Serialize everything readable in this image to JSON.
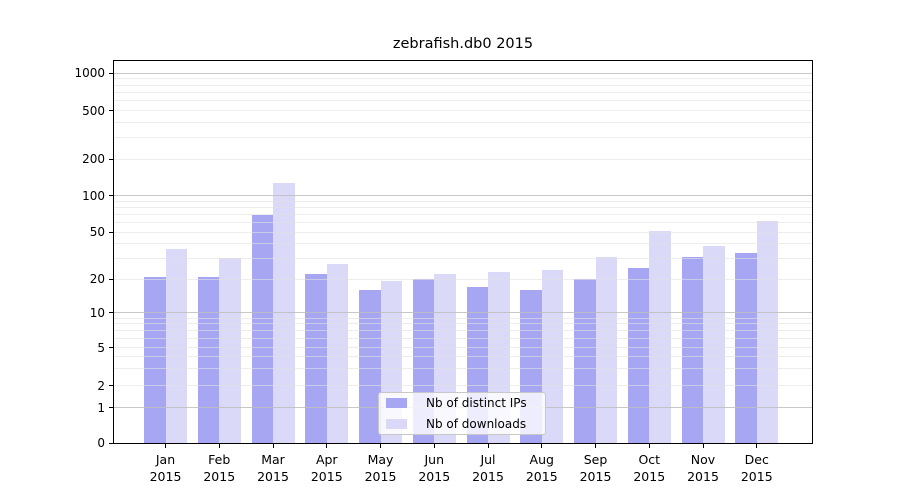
{
  "chart_data": {
    "type": "bar",
    "title": "zebrafish.db0 2015",
    "scale": "symlog",
    "ylim": [
      0,
      1000
    ],
    "y_ticks": [
      0,
      1,
      2,
      5,
      10,
      20,
      50,
      100,
      200,
      500,
      1000
    ],
    "grid": "horizontal major at powers of 10, faint minors between",
    "legend_position": "lower center",
    "year": "2015",
    "categories": [
      "Jan",
      "Feb",
      "Mar",
      "Apr",
      "May",
      "Jun",
      "Jul",
      "Aug",
      "Sep",
      "Oct",
      "Nov",
      "Dec"
    ],
    "series": [
      {
        "name": "Nb of distinct IPs",
        "color": "#a6a6f2",
        "values": [
          21,
          21,
          70,
          22,
          16,
          20,
          17,
          16,
          20,
          25,
          31,
          33
        ]
      },
      {
        "name": "Nb of downloads",
        "color": "#dadaf8",
        "values": [
          36,
          30,
          126,
          27,
          19,
          22,
          23,
          24,
          31,
          51,
          38,
          62
        ]
      }
    ]
  }
}
